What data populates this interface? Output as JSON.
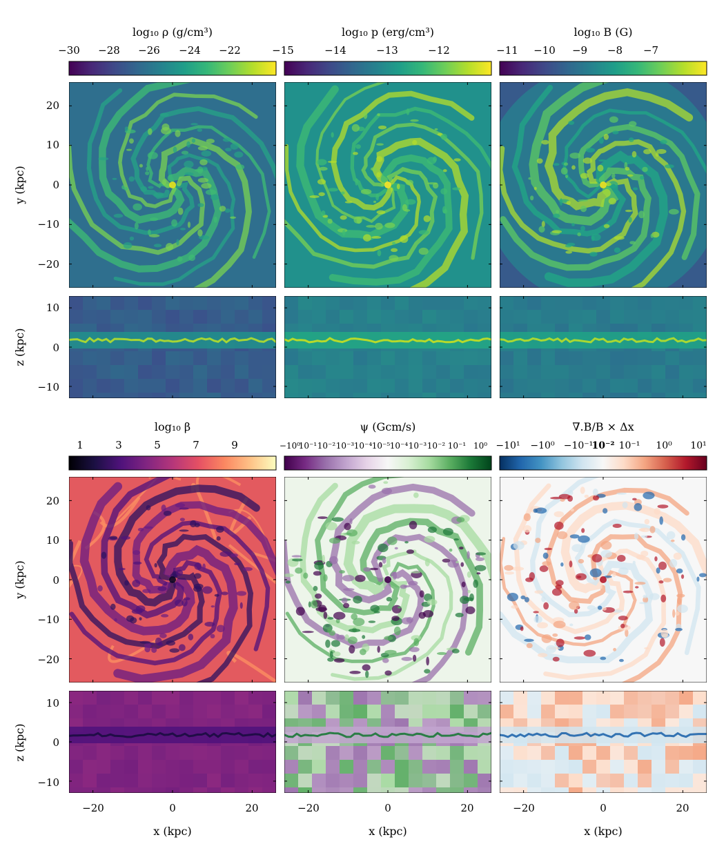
{
  "figure": {
    "background": "#ffffff"
  },
  "chart_data": [
    {
      "type": "heatmap",
      "colorbar_label": "log₁₀ ρ (g/cm³)",
      "colorbar_ticks": [
        "−30",
        "−28",
        "−26",
        "−24",
        "−22",
        "−15"
      ],
      "colormap": "viridis",
      "face_on": {
        "xlim": [
          -26,
          26
        ],
        "ylim": [
          -26,
          26
        ],
        "ylabel": "y (kpc)",
        "yticks": [
          "20",
          "10",
          "0",
          "−10",
          "−20"
        ]
      },
      "edge_on": {
        "xlim": [
          -26,
          26
        ],
        "zlim": [
          -13,
          13
        ],
        "ylabel": "z (kpc)",
        "zticks": [
          "10",
          "0",
          "−10"
        ]
      }
    },
    {
      "type": "heatmap",
      "colorbar_label": "log₁₀ p (erg/cm³)",
      "colorbar_ticks": [
        "−14",
        "−13",
        "−12"
      ],
      "colormap": "viridis",
      "face_on": {
        "xlim": [
          -26,
          26
        ],
        "ylim": [
          -26,
          26
        ]
      },
      "edge_on": {
        "xlim": [
          -26,
          26
        ],
        "zlim": [
          -13,
          13
        ]
      }
    },
    {
      "type": "heatmap",
      "colorbar_label": "log₁₀ B (G)",
      "colorbar_ticks": [
        "−11",
        "−10",
        "−9",
        "−8",
        "−7"
      ],
      "colormap": "viridis",
      "face_on": {
        "xlim": [
          -26,
          26
        ],
        "ylim": [
          -26,
          26
        ]
      },
      "edge_on": {
        "xlim": [
          -26,
          26
        ],
        "zlim": [
          -13,
          13
        ]
      }
    },
    {
      "type": "heatmap",
      "colorbar_label": "log₁₀ β",
      "colorbar_ticks": [
        "1",
        "3",
        "5",
        "7",
        "9"
      ],
      "colormap": "magma",
      "face_on": {
        "xlim": [
          -26,
          26
        ],
        "ylim": [
          -26,
          26
        ],
        "ylabel": "y (kpc)",
        "yticks": [
          "20",
          "10",
          "0",
          "−10",
          "−20"
        ]
      },
      "edge_on": {
        "xlim": [
          -26,
          26
        ],
        "zlim": [
          -13,
          13
        ],
        "ylabel": "z (kpc)",
        "zticks": [
          "10",
          "0",
          "−10"
        ],
        "xlabel": "x (kpc)",
        "xticks": [
          "−20",
          "0",
          "20"
        ]
      }
    },
    {
      "type": "heatmap",
      "colorbar_label": "ψ (Gcm/s)",
      "colorbar_ticks": [
        "−10⁰",
        "10⁻¹",
        "10⁻²",
        "10⁻³",
        "10⁻⁴",
        "10⁻⁵",
        "10⁻⁴",
        "10⁻³",
        "10⁻²",
        "10⁻¹",
        "10⁰"
      ],
      "colormap": "PRGn (diverging, symlog)",
      "face_on": {
        "xlim": [
          -26,
          26
        ],
        "ylim": [
          -26,
          26
        ]
      },
      "edge_on": {
        "xlim": [
          -26,
          26
        ],
        "zlim": [
          -13,
          13
        ],
        "xlabel": "x (kpc)",
        "xticks": [
          "−20",
          "0",
          "20"
        ]
      }
    },
    {
      "type": "heatmap",
      "colorbar_label": "∇.B/B × Δx",
      "colorbar_ticks": [
        "−10¹",
        "−10⁰",
        "−10⁻¹",
        "10⁻²",
        "10⁻¹",
        "10⁰",
        "10¹"
      ],
      "colormap": "RdBu_r (diverging, symlog)",
      "face_on": {
        "xlim": [
          -26,
          26
        ],
        "ylim": [
          -26,
          26
        ]
      },
      "edge_on": {
        "xlim": [
          -26,
          26
        ],
        "zlim": [
          -13,
          13
        ],
        "xlabel": "x (kpc)",
        "xticks": [
          "−20",
          "0",
          "20"
        ]
      }
    }
  ],
  "colors": {
    "viridis": [
      "#440154",
      "#482878",
      "#3e4a89",
      "#31688e",
      "#26828e",
      "#1f9e89",
      "#35b779",
      "#6ece58",
      "#b5de2b",
      "#fde725"
    ],
    "magma": [
      "#000004",
      "#1c1044",
      "#4f127b",
      "#812581",
      "#b5367a",
      "#e55064",
      "#fb8761",
      "#fec287",
      "#fcfdbf"
    ],
    "prgn": [
      "#40004b",
      "#762a83",
      "#9970ab",
      "#c2a5cf",
      "#e7d4e8",
      "#f7f7f7",
      "#d9f0d3",
      "#a6dba0",
      "#5aae61",
      "#1b7837",
      "#00441b"
    ],
    "rdbu": [
      "#053061",
      "#2166ac",
      "#4393c3",
      "#92c5de",
      "#d1e5f0",
      "#f7f7f7",
      "#fddbc7",
      "#f4a582",
      "#d6604d",
      "#b2182b",
      "#67001f"
    ]
  }
}
